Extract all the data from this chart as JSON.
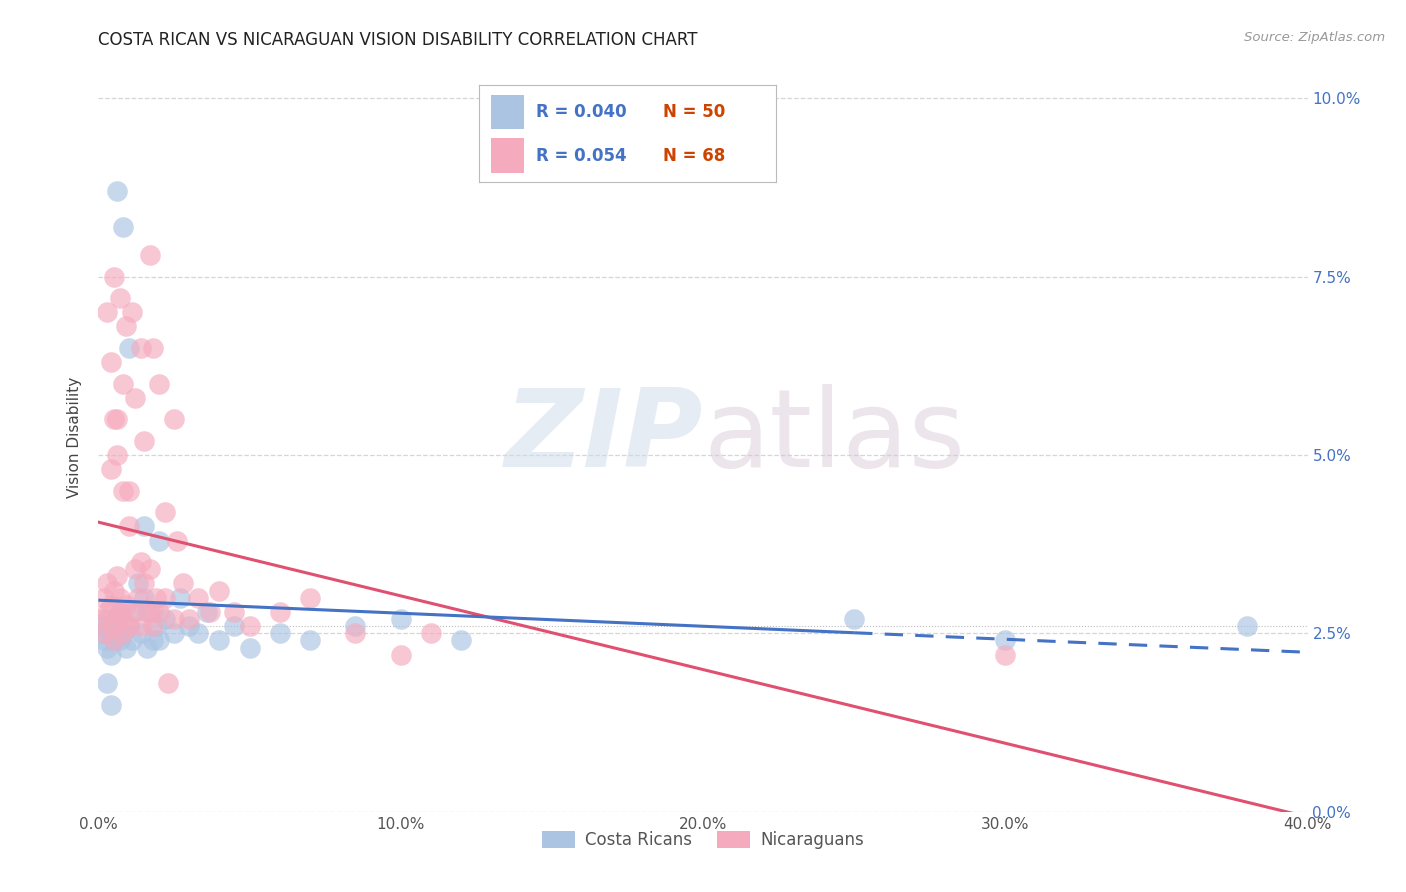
{
  "title": "COSTA RICAN VS NICARAGUAN VISION DISABILITY CORRELATION CHART",
  "source": "Source: ZipAtlas.com",
  "ylabel": "Vision Disability",
  "xlim": [
    0.0,
    0.4
  ],
  "ylim": [
    0.0,
    0.105
  ],
  "yticks": [
    0.0,
    0.025,
    0.05,
    0.075,
    0.1
  ],
  "ytick_labels": [
    "0.0%",
    "2.5%",
    "5.0%",
    "7.5%",
    "10.0%"
  ],
  "xticks": [
    0.0,
    0.1,
    0.2,
    0.3,
    0.4
  ],
  "xtick_labels": [
    "0.0%",
    "10.0%",
    "20.0%",
    "30.0%",
    "40.0%"
  ],
  "costa_rican_color": "#aac4e2",
  "nicaraguan_color": "#f5aabe",
  "costa_rican_line_color": "#4472c4",
  "nicaraguan_line_color": "#e05070",
  "tick_label_color": "#4472c4",
  "R_cr": 0.04,
  "N_cr": 50,
  "R_ni": 0.054,
  "N_ni": 68,
  "watermark_zip": "ZIP",
  "watermark_atlas": "atlas",
  "background_color": "#ffffff",
  "grid_color": "#cccccc",
  "cr_x": [
    0.001,
    0.002,
    0.002,
    0.003,
    0.003,
    0.004,
    0.004,
    0.005,
    0.005,
    0.006,
    0.006,
    0.007,
    0.007,
    0.008,
    0.009,
    0.01,
    0.011,
    0.012,
    0.013,
    0.014,
    0.015,
    0.016,
    0.017,
    0.018,
    0.019,
    0.02,
    0.022,
    0.025,
    0.027,
    0.03,
    0.033,
    0.036,
    0.04,
    0.045,
    0.05,
    0.06,
    0.07,
    0.085,
    0.1,
    0.12,
    0.006,
    0.008,
    0.01,
    0.015,
    0.02,
    0.25,
    0.3,
    0.38,
    0.003,
    0.004
  ],
  "cr_y": [
    0.025,
    0.026,
    0.024,
    0.023,
    0.027,
    0.025,
    0.022,
    0.024,
    0.026,
    0.025,
    0.027,
    0.024,
    0.028,
    0.025,
    0.023,
    0.026,
    0.024,
    0.028,
    0.032,
    0.025,
    0.03,
    0.023,
    0.028,
    0.024,
    0.026,
    0.024,
    0.027,
    0.025,
    0.03,
    0.026,
    0.025,
    0.028,
    0.024,
    0.026,
    0.023,
    0.025,
    0.024,
    0.026,
    0.027,
    0.024,
    0.087,
    0.082,
    0.065,
    0.04,
    0.038,
    0.027,
    0.024,
    0.026,
    0.018,
    0.015
  ],
  "ni_x": [
    0.001,
    0.002,
    0.002,
    0.003,
    0.003,
    0.004,
    0.004,
    0.005,
    0.005,
    0.006,
    0.006,
    0.007,
    0.007,
    0.008,
    0.008,
    0.009,
    0.01,
    0.011,
    0.012,
    0.013,
    0.014,
    0.015,
    0.016,
    0.017,
    0.018,
    0.019,
    0.02,
    0.022,
    0.025,
    0.028,
    0.03,
    0.033,
    0.037,
    0.04,
    0.045,
    0.05,
    0.06,
    0.07,
    0.085,
    0.1,
    0.004,
    0.005,
    0.006,
    0.008,
    0.01,
    0.012,
    0.015,
    0.018,
    0.022,
    0.026,
    0.005,
    0.007,
    0.009,
    0.011,
    0.014,
    0.017,
    0.02,
    0.025,
    0.11,
    0.3,
    0.003,
    0.004,
    0.006,
    0.008,
    0.01,
    0.014,
    0.018,
    0.023
  ],
  "ni_y": [
    0.027,
    0.03,
    0.025,
    0.028,
    0.032,
    0.026,
    0.029,
    0.031,
    0.024,
    0.027,
    0.033,
    0.028,
    0.03,
    0.027,
    0.025,
    0.029,
    0.026,
    0.028,
    0.034,
    0.03,
    0.026,
    0.032,
    0.028,
    0.034,
    0.026,
    0.03,
    0.028,
    0.03,
    0.027,
    0.032,
    0.027,
    0.03,
    0.028,
    0.031,
    0.028,
    0.026,
    0.028,
    0.03,
    0.025,
    0.022,
    0.048,
    0.055,
    0.05,
    0.06,
    0.045,
    0.058,
    0.052,
    0.065,
    0.042,
    0.038,
    0.075,
    0.072,
    0.068,
    0.07,
    0.065,
    0.078,
    0.06,
    0.055,
    0.025,
    0.022,
    0.07,
    0.063,
    0.055,
    0.045,
    0.04,
    0.035,
    0.028,
    0.018
  ]
}
